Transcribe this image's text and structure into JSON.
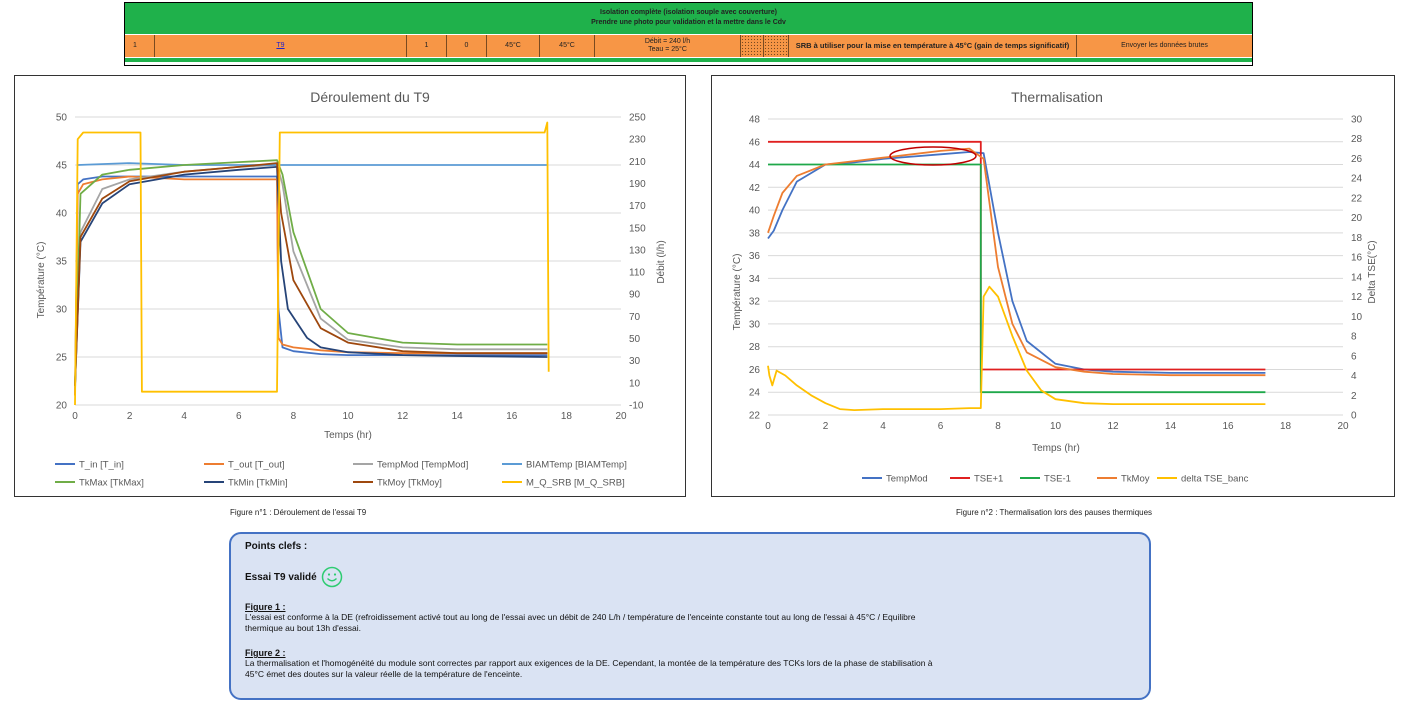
{
  "top_table": {
    "line1": "Isolation complète (isolation souple avec couverture)",
    "line2": "Prendre une photo pour validation et la mettre dans le Cdv",
    "cells": [
      "1",
      "T9",
      "1",
      "0",
      "45°C",
      "45°C",
      "Débit = 240 l/h\nTeau = 25°C",
      "",
      "",
      "SRB à utiliser pour la mise en température à 45°C (gain de temps significatif)",
      "Envoyer les données brutes"
    ]
  },
  "chart1": {
    "title": "Déroulement du T9",
    "ylabel": "Température (°C)",
    "y2label": "Débit (l/h)",
    "xlabel": "Temps (hr)",
    "legend": [
      "T_in [T_in]",
      "T_out [T_out]",
      "TempMod [TempMod]",
      "BIAMTemp [BIAMTemp]",
      "TkMax [TkMax]",
      "TkMin [TkMin]",
      "TkMoy [TkMoy]",
      "M_Q_SRB [M_Q_SRB]"
    ]
  },
  "chart2": {
    "title": "Thermalisation",
    "ylabel": "Température (°C)",
    "y2label": "Delta TSE(°C)",
    "xlabel": "Temps (hr)",
    "legend": [
      "TempMod",
      "TSE+1",
      "TSE-1",
      "TkMoy",
      "delta TSE_banc"
    ]
  },
  "chart_data": [
    {
      "type": "line",
      "title": "Déroulement du T9",
      "xlabel": "Temps (hr)",
      "ylabel": "Température (°C)",
      "y2label": "Débit (l/h)",
      "xlim": [
        0,
        20
      ],
      "ylim": [
        20,
        50
      ],
      "y2lim": [
        -10,
        250
      ],
      "x_ticks": [
        0,
        2,
        4,
        6,
        8,
        10,
        12,
        14,
        16,
        18,
        20
      ],
      "y_ticks": [
        20,
        25,
        30,
        35,
        40,
        45,
        50
      ],
      "y2_ticks": [
        -10,
        10,
        30,
        50,
        70,
        90,
        110,
        130,
        150,
        170,
        190,
        210,
        230,
        250
      ],
      "legend_position": "bottom",
      "series": [
        {
          "name": "T_in [T_in]",
          "color": "#4472c4",
          "axis": "y",
          "x": [
            0,
            0.1,
            0.3,
            1,
            2,
            4,
            6,
            7.4,
            7.45,
            7.6,
            8,
            9,
            10,
            12,
            14,
            17.3
          ],
          "y": [
            21,
            43,
            43.5,
            43.8,
            43.8,
            43.8,
            43.8,
            43.8,
            30,
            26,
            25.6,
            25.3,
            25.2,
            25.2,
            25.2,
            25.2
          ]
        },
        {
          "name": "T_out [T_out]",
          "color": "#ed7d31",
          "axis": "y",
          "x": [
            0,
            0.1,
            0.3,
            1,
            2,
            4,
            6,
            7.4,
            7.45,
            7.6,
            8,
            9,
            10,
            12,
            14,
            17.3
          ],
          "y": [
            21,
            42,
            43,
            43.5,
            43.8,
            43.5,
            43.5,
            43.5,
            27,
            26.3,
            26,
            25.7,
            25.5,
            25.4,
            25.4,
            25.4
          ]
        },
        {
          "name": "TempMod [TempMod]",
          "color": "#a5a5a5",
          "axis": "y",
          "x": [
            0,
            0.2,
            1,
            2,
            4,
            6,
            7.4,
            7.6,
            8,
            9,
            10,
            12,
            14,
            17.3
          ],
          "y": [
            22,
            38,
            42.5,
            43.5,
            44.3,
            44.8,
            45,
            43,
            36,
            29,
            26.8,
            26,
            25.8,
            25.8
          ]
        },
        {
          "name": "BIAMTemp [BIAMTemp]",
          "color": "#5b9bd5",
          "axis": "y",
          "x": [
            0.1,
            2,
            4,
            6,
            8,
            10,
            12,
            14,
            16,
            17.3
          ],
          "y": [
            45,
            45.2,
            45,
            45,
            45,
            45,
            45,
            45,
            45,
            45
          ]
        },
        {
          "name": "TkMax [TkMax]",
          "color": "#70ad47",
          "axis": "y",
          "x": [
            0,
            0.2,
            1,
            2,
            4,
            6,
            7.4,
            7.6,
            8,
            9,
            10,
            12,
            14,
            17.3
          ],
          "y": [
            22,
            42,
            44,
            44.5,
            45,
            45.3,
            45.5,
            44,
            38,
            30,
            27.5,
            26.5,
            26.3,
            26.3
          ]
        },
        {
          "name": "TkMin [TkMin]",
          "color": "#264478",
          "axis": "y",
          "x": [
            0,
            0.2,
            1,
            2,
            4,
            6,
            7.4,
            7.55,
            7.8,
            8.5,
            9,
            10,
            12,
            14,
            17.3
          ],
          "y": [
            22,
            37,
            41,
            43,
            44,
            44.5,
            44.8,
            35,
            30,
            27,
            26,
            25.5,
            25.2,
            25.1,
            25
          ]
        },
        {
          "name": "TkMoy [TkMoy]",
          "color": "#9e480e",
          "axis": "y",
          "x": [
            0,
            0.2,
            1,
            2,
            4,
            6,
            7.4,
            7.55,
            8,
            9,
            10,
            12,
            14,
            17.3
          ],
          "y": [
            22,
            37.5,
            41.5,
            43.3,
            44.3,
            44.8,
            45.2,
            40,
            33,
            28,
            26.5,
            25.6,
            25.4,
            25.4
          ]
        },
        {
          "name": "M_Q_SRB [M_Q_SRB]",
          "color": "#ffc000",
          "axis": "y2",
          "x": [
            0,
            0.1,
            0.3,
            2.4,
            2.45,
            7.4,
            7.5,
            17.2,
            17.3,
            17.35
          ],
          "y": [
            -10,
            230,
            236,
            236,
            2,
            2,
            236,
            236,
            245,
            20
          ]
        }
      ]
    },
    {
      "type": "line",
      "title": "Thermalisation",
      "xlabel": "Temps (hr)",
      "ylabel": "Température (°C)",
      "y2label": "Delta TSE(°C)",
      "xlim": [
        0,
        20
      ],
      "ylim": [
        22,
        48
      ],
      "y2lim": [
        0,
        30
      ],
      "x_ticks": [
        0,
        2,
        4,
        6,
        8,
        10,
        12,
        14,
        16,
        18,
        20
      ],
      "y_ticks": [
        22,
        24,
        26,
        28,
        30,
        32,
        34,
        36,
        38,
        40,
        42,
        44,
        46,
        48
      ],
      "y2_ticks": [
        0,
        2,
        4,
        6,
        8,
        10,
        12,
        14,
        16,
        18,
        20,
        22,
        24,
        26,
        28,
        30
      ],
      "legend_position": "bottom",
      "series": [
        {
          "name": "TempMod",
          "color": "#4472c4",
          "axis": "y",
          "x": [
            0,
            0.2,
            0.5,
            1,
            2,
            3,
            4,
            5,
            6,
            7,
            7.5,
            8,
            8.5,
            9,
            10,
            11,
            12,
            14,
            17.3
          ],
          "y": [
            37.5,
            38.2,
            40,
            42.5,
            44,
            44.2,
            44.5,
            44.7,
            44.9,
            45.1,
            45,
            38,
            32,
            28.5,
            26.5,
            26,
            25.8,
            25.7,
            25.7
          ]
        },
        {
          "name": "TSE+1",
          "color": "#e02020",
          "axis": "y",
          "x": [
            0,
            7.4,
            7.4,
            17.3
          ],
          "y": [
            46,
            46,
            26,
            26
          ]
        },
        {
          "name": "TSE-1",
          "color": "#1fa84a",
          "axis": "y",
          "x": [
            0,
            7.4,
            7.4,
            17.3
          ],
          "y": [
            44,
            44,
            24,
            24
          ]
        },
        {
          "name": "TkMoy",
          "color": "#ed7d31",
          "axis": "y",
          "x": [
            0,
            0.2,
            0.5,
            1,
            2,
            3,
            4,
            5,
            6,
            7,
            7.5,
            8,
            8.5,
            9,
            10,
            11,
            12,
            14,
            17.3
          ],
          "y": [
            38,
            39.5,
            41.5,
            43,
            44,
            44.3,
            44.6,
            44.9,
            45.2,
            45.4,
            44.5,
            35,
            30,
            27.5,
            26.2,
            25.8,
            25.6,
            25.5,
            25.5
          ]
        },
        {
          "name": "delta TSE_banc",
          "color": "#ffc000",
          "axis": "y2",
          "x": [
            0,
            0.05,
            0.15,
            0.3,
            0.6,
            1,
            1.5,
            2,
            2.5,
            3,
            4,
            5,
            6,
            7,
            7.4,
            7.5,
            7.7,
            8,
            8.5,
            9,
            9.5,
            10,
            11,
            12,
            14,
            17.3
          ],
          "y": [
            5,
            4,
            3,
            4.5,
            4,
            3,
            2,
            1.2,
            0.6,
            0.5,
            0.6,
            0.6,
            0.6,
            0.7,
            0.7,
            12,
            13,
            12,
            8,
            4.5,
            2.5,
            1.6,
            1.2,
            1.1,
            1.1,
            1.1
          ]
        }
      ]
    }
  ],
  "captions": {
    "fig1": "Figure n°1 : Déroulement de l'essai T9",
    "fig2": "Figure n°2 : Thermalisation lors des pauses thermiques"
  },
  "key_points": {
    "title": "Points clefs :",
    "valid": "Essai T9 validé",
    "fig1_title": "Figure 1 :",
    "fig1_line1": "L'essai est conforme à la DE  (refroidissement activé tout au long de l'essai avec un débit de 240 L/h / température de l'enceinte constante tout au long de l'essai à 45°C / Equilibre",
    "fig1_line2": "thermique au bout 13h d'essai.",
    "fig2_title": "Figure 2 :",
    "fig2_line1": "La thermalisation et l'homogénéité du module sont correctes par rapport aux exigences de la DE. Cependant, la montée de la température des TCKs lors de la phase de stabilisation à",
    "fig2_line2": "45°C émet des doutes sur la valeur réelle de la température de l'enceinte."
  }
}
